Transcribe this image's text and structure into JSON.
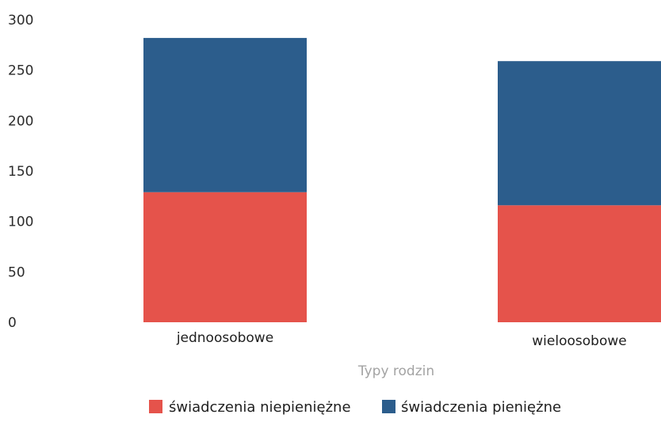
{
  "chart_data": {
    "type": "bar",
    "stacked": true,
    "categories": [
      "jednoosobowe",
      "wieloosobowe"
    ],
    "series": [
      {
        "name": "świadczenia niepieniężne",
        "values": [
          129,
          116
        ],
        "color": "#e5534b"
      },
      {
        "name": "świadczenia pieniężne",
        "values": [
          153,
          143
        ],
        "color": "#2c5d8c"
      }
    ],
    "xlabel": "Typy rodzin",
    "ylabel": "",
    "ylim": [
      0,
      300
    ],
    "yticks": [
      0,
      50,
      100,
      150,
      200,
      250,
      300
    ],
    "grid": false,
    "legend_position": "bottom"
  }
}
